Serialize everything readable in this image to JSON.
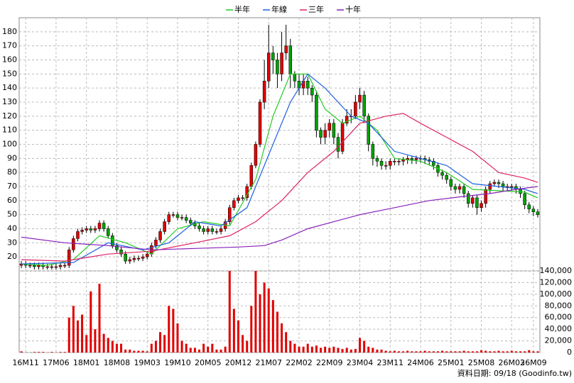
{
  "chart_data": {
    "type": "candlestick",
    "source": "資料日期: 09/18 (Goodinfo.tw)",
    "up_color": "#e00000",
    "down_color": "#00a000",
    "grid": true,
    "ylim": [
      10,
      190
    ],
    "yticks": [
      20,
      30,
      40,
      50,
      60,
      70,
      80,
      90,
      100,
      110,
      120,
      130,
      140,
      150,
      160,
      170,
      180
    ],
    "y2lim": [
      0,
      140000
    ],
    "y2ticks": [
      0,
      {
        "value": 20000,
        "label": "20,000"
      },
      {
        "value": 40000,
        "label": "40,000"
      },
      {
        "value": 60000,
        "label": "60,000"
      },
      {
        "value": 80000,
        "label": "80,000"
      },
      {
        "value": 100000,
        "label": "100,000"
      },
      {
        "value": 120000,
        "label": "120,000"
      },
      {
        "value": 140000,
        "label": "140,000"
      }
    ],
    "xlim": [
      -0.5,
      119.5
    ],
    "xticks": [
      {
        "value": 1,
        "label": "16M11"
      },
      {
        "value": 8,
        "label": "17M06"
      },
      {
        "value": 15,
        "label": "18M01"
      },
      {
        "value": 22,
        "label": "18M08"
      },
      {
        "value": 29,
        "label": "19M03"
      },
      {
        "value": 36,
        "label": "19M10"
      },
      {
        "value": 43,
        "label": "20M05"
      },
      {
        "value": 50,
        "label": "20M12"
      },
      {
        "value": 57,
        "label": "21M07"
      },
      {
        "value": 64,
        "label": "22M02"
      },
      {
        "value": 71,
        "label": "22M09"
      },
      {
        "value": 78,
        "label": "23M04"
      },
      {
        "value": 85,
        "label": "23M11"
      },
      {
        "value": 92,
        "label": "24M06"
      },
      {
        "value": 99,
        "label": "25M01"
      },
      {
        "value": 106,
        "label": "25M08"
      },
      {
        "value": 113,
        "label": "26M03"
      },
      {
        "value": 118,
        "label": "26M09"
      }
    ],
    "open": [
      14,
      15,
      14,
      14,
      13,
      14,
      13,
      13,
      13,
      13,
      14,
      14,
      25,
      33,
      38,
      39,
      40,
      39,
      40,
      44,
      40,
      35,
      28,
      25,
      22,
      17,
      18,
      19,
      19,
      20,
      22,
      28,
      32,
      38,
      45,
      50,
      50,
      48,
      48,
      46,
      44,
      42,
      40,
      38,
      40,
      38,
      38,
      40,
      45,
      55,
      60,
      62,
      62,
      70,
      85,
      100,
      130,
      145,
      165,
      160,
      150,
      165,
      170,
      150,
      145,
      140,
      145,
      140,
      135,
      110,
      105,
      110,
      115,
      105,
      95,
      115,
      120,
      120,
      130,
      135,
      120,
      100,
      90,
      88,
      85,
      85,
      88,
      88,
      88,
      89,
      90,
      89,
      90,
      90,
      89,
      88,
      85,
      80,
      78,
      75,
      70,
      68,
      70,
      65,
      58,
      62,
      55,
      58,
      68,
      72,
      73,
      72,
      70,
      70,
      70,
      68,
      65,
      57,
      54,
      52
    ],
    "high": [
      17,
      17,
      16,
      16,
      16,
      16,
      15,
      15,
      15,
      16,
      16,
      27,
      35,
      40,
      41,
      42,
      42,
      42,
      46,
      46,
      42,
      37,
      30,
      27,
      24,
      20,
      21,
      21,
      22,
      24,
      30,
      34,
      40,
      47,
      52,
      52,
      52,
      50,
      50,
      48,
      46,
      44,
      42,
      42,
      42,
      40,
      42,
      47,
      57,
      62,
      64,
      64,
      72,
      87,
      102,
      132,
      160,
      185,
      170,
      165,
      180,
      185,
      175,
      152,
      150,
      150,
      148,
      142,
      138,
      112,
      115,
      118,
      118,
      108,
      118,
      125,
      125,
      135,
      140,
      138,
      122,
      102,
      92,
      90,
      88,
      90,
      90,
      90,
      91,
      92,
      92,
      92,
      92,
      92,
      91,
      90,
      87,
      82,
      80,
      77,
      72,
      72,
      72,
      67,
      64,
      64,
      60,
      70,
      74,
      75,
      75,
      74,
      72,
      72,
      72,
      70,
      67,
      59,
      56,
      54
    ],
    "low": [
      12,
      12,
      12,
      11,
      11,
      11,
      11,
      11,
      11,
      11,
      12,
      12,
      23,
      31,
      36,
      37,
      37,
      37,
      38,
      38,
      33,
      26,
      23,
      20,
      15,
      15,
      16,
      17,
      17,
      18,
      20,
      26,
      30,
      36,
      43,
      48,
      46,
      46,
      44,
      42,
      40,
      38,
      36,
      36,
      36,
      36,
      36,
      38,
      43,
      53,
      58,
      60,
      60,
      68,
      83,
      98,
      125,
      140,
      150,
      140,
      145,
      160,
      140,
      140,
      135,
      135,
      135,
      130,
      105,
      100,
      100,
      105,
      100,
      90,
      93,
      113,
      115,
      118,
      125,
      115,
      95,
      85,
      84,
      82,
      82,
      82,
      85,
      85,
      85,
      86,
      86,
      86,
      87,
      86,
      85,
      82,
      77,
      75,
      72,
      67,
      65,
      65,
      62,
      55,
      55,
      50,
      52,
      55,
      65,
      70,
      69,
      67,
      67,
      67,
      65,
      62,
      54,
      51,
      49,
      48
    ],
    "close": [
      15,
      14,
      14,
      13,
      14,
      13,
      13,
      13,
      13,
      14,
      14,
      25,
      33,
      38,
      39,
      40,
      39,
      40,
      44,
      40,
      35,
      28,
      25,
      22,
      17,
      18,
      19,
      19,
      20,
      22,
      28,
      32,
      38,
      45,
      50,
      50,
      48,
      48,
      46,
      44,
      42,
      40,
      38,
      40,
      38,
      38,
      40,
      45,
      55,
      60,
      62,
      62,
      70,
      85,
      100,
      130,
      145,
      165,
      160,
      150,
      165,
      170,
      150,
      145,
      140,
      145,
      140,
      135,
      110,
      105,
      110,
      115,
      105,
      95,
      115,
      120,
      120,
      130,
      135,
      120,
      100,
      90,
      88,
      85,
      85,
      88,
      88,
      88,
      89,
      90,
      89,
      90,
      90,
      89,
      88,
      85,
      80,
      78,
      75,
      70,
      68,
      70,
      65,
      58,
      62,
      55,
      58,
      68,
      72,
      73,
      72,
      70,
      70,
      70,
      68,
      65,
      57,
      54,
      52,
      50
    ],
    "volume": {
      "axis": "y2",
      "color": "#e00000",
      "values": [
        2000,
        0,
        0,
        1000,
        1000,
        1000,
        0,
        1000,
        0,
        1000,
        1000,
        60000,
        80000,
        55000,
        65000,
        30000,
        105000,
        40000,
        118000,
        32000,
        25000,
        20000,
        15000,
        15000,
        5000,
        5000,
        3000,
        3000,
        3000,
        2000,
        15000,
        20000,
        35000,
        30000,
        80000,
        75000,
        50000,
        20000,
        15000,
        8000,
        8000,
        5000,
        15000,
        10000,
        15000,
        5000,
        5000,
        10000,
        140000,
        75000,
        55000,
        30000,
        20000,
        80000,
        140000,
        100000,
        120000,
        110000,
        90000,
        70000,
        50000,
        35000,
        20000,
        15000,
        10000,
        10000,
        15000,
        10000,
        12000,
        8000,
        10000,
        8000,
        10000,
        8000,
        6000,
        8000,
        5000,
        6000,
        25000,
        20000,
        10000,
        8000,
        5000,
        5000,
        3000,
        2000,
        3000,
        2000,
        2000,
        3000,
        2000,
        2000,
        2000,
        3000,
        2000,
        2000,
        2000,
        3000,
        2000,
        2000,
        2000,
        2000,
        3000,
        2000,
        2000,
        2000,
        4000,
        3000,
        2000,
        2000,
        3000,
        2000,
        2000,
        3000,
        2000,
        2000,
        2000,
        4000,
        2000,
        2000
      ]
    },
    "lines": [
      {
        "name": "半年",
        "color": "#22cc22",
        "x": [
          0,
          6,
          12,
          18,
          24,
          30,
          36,
          42,
          48,
          54,
          58,
          62,
          66,
          70,
          74,
          78,
          82,
          86,
          92,
          98,
          104,
          110,
          116,
          119
        ],
        "values": [
          15,
          14,
          18,
          35,
          30,
          22,
          40,
          45,
          42,
          75,
          120,
          150,
          150,
          125,
          115,
          120,
          110,
          90,
          88,
          80,
          68,
          67,
          66,
          62
        ]
      },
      {
        "name": "年線",
        "color": "#1e60e0",
        "x": [
          0,
          12,
          20,
          28,
          34,
          40,
          46,
          52,
          58,
          62,
          66,
          70,
          76,
          80,
          86,
          92,
          98,
          104,
          110,
          116,
          119
        ],
        "values": [
          15,
          16,
          30,
          25,
          30,
          45,
          42,
          55,
          100,
          130,
          150,
          140,
          120,
          115,
          95,
          90,
          85,
          72,
          70,
          68,
          65
        ]
      },
      {
        "name": "三年",
        "color": "#dd2266",
        "x": [
          0,
          10,
          20,
          30,
          40,
          48,
          54,
          60,
          66,
          72,
          78,
          84,
          88,
          92,
          98,
          104,
          110,
          116,
          119
        ],
        "values": [
          18,
          17,
          22,
          24,
          30,
          35,
          45,
          60,
          80,
          95,
          115,
          120,
          122,
          115,
          105,
          95,
          80,
          76,
          73
        ]
      },
      {
        "name": "十年",
        "color": "#8822bb",
        "x": [
          0,
          10,
          20,
          30,
          40,
          50,
          56,
          60,
          66,
          72,
          78,
          86,
          94,
          102,
          108,
          114,
          119
        ],
        "values": [
          34,
          30,
          28,
          25,
          26,
          27,
          28,
          32,
          40,
          45,
          50,
          55,
          60,
          63,
          65,
          68,
          70
        ]
      }
    ]
  }
}
